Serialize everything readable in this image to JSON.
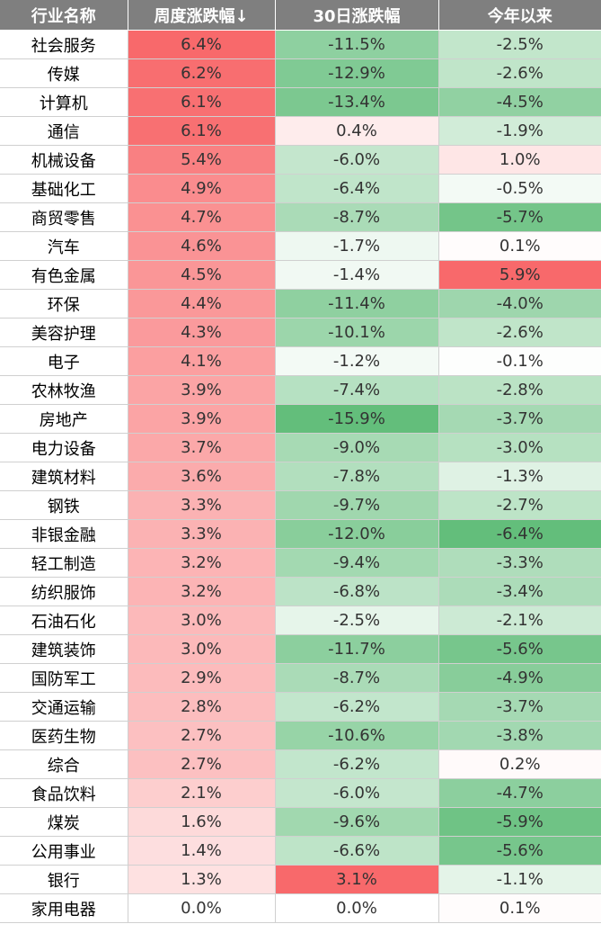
{
  "headers": [
    "行业名称",
    "周度涨跌幅↓",
    "30日涨跌幅",
    "今年以来"
  ],
  "colors": {
    "header_bg": "#7f7f7f",
    "positive": "#f8696b",
    "negative": "#63be7b",
    "neutral": "#ffffff"
  },
  "rows": [
    {
      "name": "社会服务",
      "weekly": "6.4%",
      "d30": "-11.5%",
      "ytd": "-2.5%"
    },
    {
      "name": "传媒",
      "weekly": "6.2%",
      "d30": "-12.9%",
      "ytd": "-2.6%"
    },
    {
      "name": "计算机",
      "weekly": "6.1%",
      "d30": "-13.4%",
      "ytd": "-4.5%"
    },
    {
      "name": "通信",
      "weekly": "6.1%",
      "d30": "0.4%",
      "ytd": "-1.9%"
    },
    {
      "name": "机械设备",
      "weekly": "5.4%",
      "d30": "-6.0%",
      "ytd": "1.0%"
    },
    {
      "name": "基础化工",
      "weekly": "4.9%",
      "d30": "-6.4%",
      "ytd": "-0.5%"
    },
    {
      "name": "商贸零售",
      "weekly": "4.7%",
      "d30": "-8.7%",
      "ytd": "-5.7%"
    },
    {
      "name": "汽车",
      "weekly": "4.6%",
      "d30": "-1.7%",
      "ytd": "0.1%"
    },
    {
      "name": "有色金属",
      "weekly": "4.5%",
      "d30": "-1.4%",
      "ytd": "5.9%"
    },
    {
      "name": "环保",
      "weekly": "4.4%",
      "d30": "-11.4%",
      "ytd": "-4.0%"
    },
    {
      "name": "美容护理",
      "weekly": "4.3%",
      "d30": "-10.1%",
      "ytd": "-2.6%"
    },
    {
      "name": "电子",
      "weekly": "4.1%",
      "d30": "-1.2%",
      "ytd": "-0.1%"
    },
    {
      "name": "农林牧渔",
      "weekly": "3.9%",
      "d30": "-7.4%",
      "ytd": "-2.8%"
    },
    {
      "name": "房地产",
      "weekly": "3.9%",
      "d30": "-15.9%",
      "ytd": "-3.7%"
    },
    {
      "name": "电力设备",
      "weekly": "3.7%",
      "d30": "-9.0%",
      "ytd": "-3.0%"
    },
    {
      "name": "建筑材料",
      "weekly": "3.6%",
      "d30": "-7.8%",
      "ytd": "-1.3%"
    },
    {
      "name": "钢铁",
      "weekly": "3.3%",
      "d30": "-9.7%",
      "ytd": "-2.7%"
    },
    {
      "name": "非银金融",
      "weekly": "3.3%",
      "d30": "-12.0%",
      "ytd": "-6.4%"
    },
    {
      "name": "轻工制造",
      "weekly": "3.2%",
      "d30": "-9.4%",
      "ytd": "-3.3%"
    },
    {
      "name": "纺织服饰",
      "weekly": "3.2%",
      "d30": "-6.8%",
      "ytd": "-3.4%"
    },
    {
      "name": "石油石化",
      "weekly": "3.0%",
      "d30": "-2.5%",
      "ytd": "-2.1%"
    },
    {
      "name": "建筑装饰",
      "weekly": "3.0%",
      "d30": "-11.7%",
      "ytd": "-5.6%"
    },
    {
      "name": "国防军工",
      "weekly": "2.9%",
      "d30": "-8.7%",
      "ytd": "-4.9%"
    },
    {
      "name": "交通运输",
      "weekly": "2.8%",
      "d30": "-6.2%",
      "ytd": "-3.7%"
    },
    {
      "name": "医药生物",
      "weekly": "2.7%",
      "d30": "-10.6%",
      "ytd": "-3.8%"
    },
    {
      "name": "综合",
      "weekly": "2.7%",
      "d30": "-6.2%",
      "ytd": "0.2%"
    },
    {
      "name": "食品饮料",
      "weekly": "2.1%",
      "d30": "-6.0%",
      "ytd": "-4.7%"
    },
    {
      "name": "煤炭",
      "weekly": "1.6%",
      "d30": "-9.6%",
      "ytd": "-5.9%"
    },
    {
      "name": "公用事业",
      "weekly": "1.4%",
      "d30": "-6.6%",
      "ytd": "-5.6%"
    },
    {
      "name": "银行",
      "weekly": "1.3%",
      "d30": "3.1%",
      "ytd": "-1.1%"
    },
    {
      "name": "家用电器",
      "weekly": "0.0%",
      "d30": "0.0%",
      "ytd": "0.1%"
    }
  ]
}
